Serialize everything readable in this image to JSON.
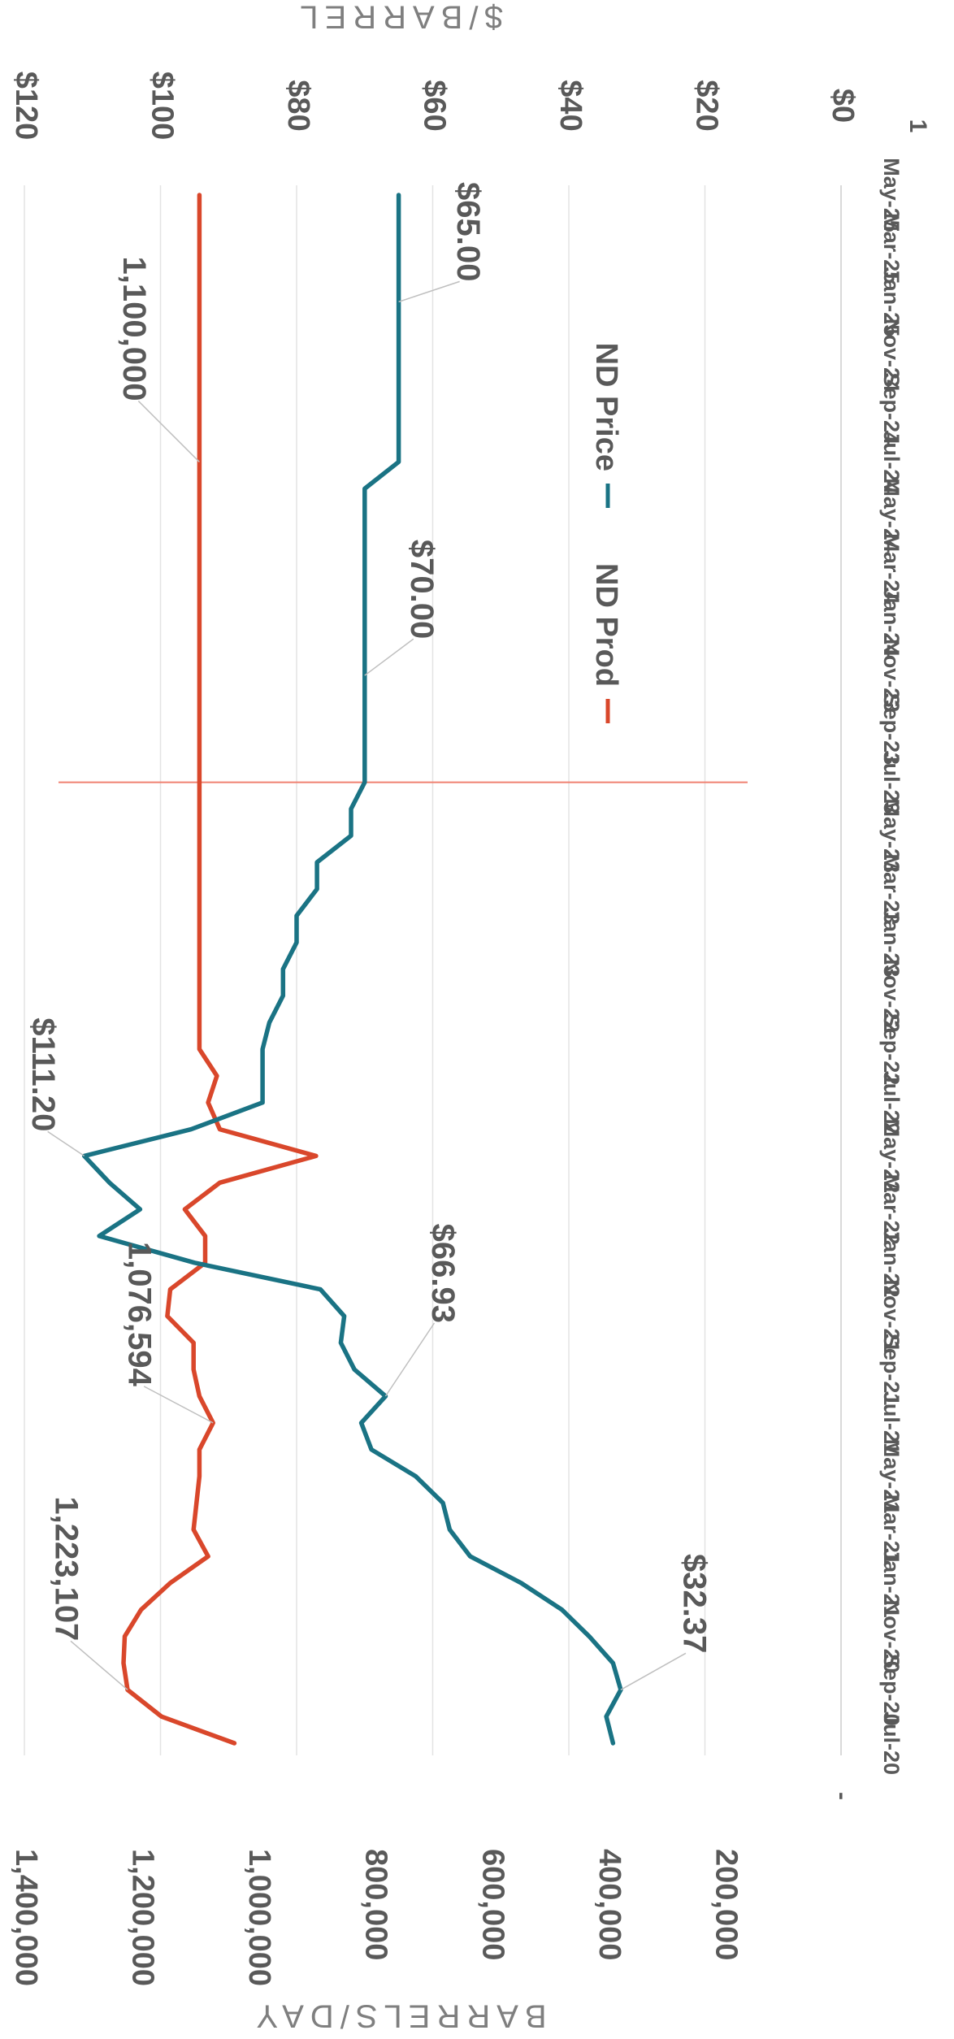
{
  "chart_data": {
    "type": "line",
    "orientation": "rotated-90-clockwise",
    "x": [
      "Jul-20",
      "Aug-20",
      "Sep-20",
      "Oct-20",
      "Nov-20",
      "Dec-20",
      "Jan-21",
      "Feb-21",
      "Mar-21",
      "Apr-21",
      "May-21",
      "Jun-21",
      "Jul-21",
      "Aug-21",
      "Sep-21",
      "Oct-21",
      "Nov-21",
      "Dec-21",
      "Jan-22",
      "Feb-22",
      "Mar-22",
      "Apr-22",
      "May-22",
      "Jun-22",
      "Jul-22",
      "Aug-22",
      "Sep-22",
      "Oct-22",
      "Nov-22",
      "Dec-22",
      "Jan-23",
      "Feb-23",
      "Mar-23",
      "Apr-23",
      "May-23",
      "Jun-23",
      "Jul-23",
      "Aug-23",
      "Sep-23",
      "Oct-23",
      "Nov-23",
      "Dec-23",
      "Jan-24",
      "Feb-24",
      "Mar-24",
      "Apr-24",
      "May-24",
      "Jun-24",
      "Jul-24",
      "Aug-24",
      "Sep-24",
      "Oct-24",
      "Nov-24",
      "Dec-24",
      "Jan-25",
      "Feb-25",
      "Mar-25",
      "Apr-25",
      "May-25"
    ],
    "x_tick_labels": [
      "Jul-20",
      "Sep-20",
      "Nov-20",
      "Jan-21",
      "Mar-21",
      "May-21",
      "Jul-21",
      "Sep-21",
      "Nov-21",
      "Jan-22",
      "Mar-22",
      "May-22",
      "Jul-22",
      "Sep-22",
      "Nov-22",
      "Jan-23",
      "Mar-23",
      "May-23",
      "Jul-23",
      "Sep-23",
      "Nov-23",
      "Jan-24",
      "Mar-24",
      "May-24",
      "Jul-24",
      "Sep-24",
      "Nov-24",
      "Jan-25",
      "Mar-25",
      "May-25"
    ],
    "series": [
      {
        "name": "ND Prod",
        "color": "#d9472b",
        "axis": "barrels",
        "values": [
          1040000,
          1165000,
          1223107,
          1230000,
          1228000,
          1200000,
          1150000,
          1085000,
          1110000,
          1105000,
          1100000,
          1100000,
          1076594,
          1100000,
          1110000,
          1110000,
          1155000,
          1150000,
          1090000,
          1090000,
          1125000,
          1065000,
          900000,
          1065000,
          1085000,
          1070000,
          1100000,
          1100000,
          1100000,
          1100000,
          1100000,
          1100000,
          1100000,
          1100000,
          1100000,
          1100000,
          1100000,
          1100000,
          1100000,
          1100000,
          1100000,
          1100000,
          1100000,
          1100000,
          1100000,
          1100000,
          1100000,
          1100000,
          1100000,
          1100000,
          1100000,
          1100000,
          1100000,
          1100000,
          1100000,
          1100000,
          1100000,
          1100000,
          1100000
        ]
      },
      {
        "name": "ND Price",
        "color": "#1a7384",
        "axis": "dollars",
        "values": [
          33.5,
          34.5,
          32.37,
          33.5,
          37.0,
          41.0,
          47.0,
          54.5,
          57.5,
          58.5,
          62.5,
          69.0,
          70.5,
          66.93,
          71.5,
          73.5,
          73.0,
          76.5,
          95.0,
          109.0,
          103.0,
          107.5,
          111.2,
          95.5,
          85.0,
          85.0,
          85.0,
          84.0,
          82.0,
          82.0,
          80.0,
          80.0,
          77.0,
          77.0,
          72.0,
          72.0,
          70.0,
          70.0,
          70.0,
          70.0,
          70.0,
          70.0,
          70.0,
          70.0,
          70.0,
          70.0,
          70.0,
          70.0,
          65.0,
          65.0,
          65.0,
          65.0,
          65.0,
          65.0,
          65.0,
          65.0,
          65.0,
          65.0,
          65.0
        ]
      }
    ],
    "data_labels": [
      {
        "series": "ND Prod",
        "x": "Sep-20",
        "text": "1,223,107"
      },
      {
        "series": "ND Prod",
        "x": "Jul-21",
        "text": "1,076,594"
      },
      {
        "series": "ND Prod",
        "x": "Jul-24",
        "text": "1,100,000"
      },
      {
        "series": "ND Price",
        "x": "Sep-20",
        "text": "$32.37"
      },
      {
        "series": "ND Price",
        "x": "Aug-21",
        "text": "$66.93"
      },
      {
        "series": "ND Price",
        "x": "May-22",
        "text": "$111.20"
      },
      {
        "series": "ND Price",
        "x": "Nov-23",
        "text": "$70.00"
      },
      {
        "series": "ND Price",
        "x": "Jan-25",
        "text": "$65.00"
      }
    ],
    "barrels_axis": {
      "title": "BARRELS/DAY",
      "range": [
        0,
        1400000
      ],
      "ticks": [
        {
          "value": 1400000,
          "label": "1,400,000"
        },
        {
          "value": 1200000,
          "label": "1,200,000"
        },
        {
          "value": 1000000,
          "label": "1,000,000"
        },
        {
          "value": 800000,
          "label": "800,000"
        },
        {
          "value": 600000,
          "label": "600,000"
        },
        {
          "value": 400000,
          "label": "400,000"
        },
        {
          "value": 200000,
          "label": "200,000"
        },
        {
          "value": 0,
          "label": "-"
        }
      ]
    },
    "dollar_axis": {
      "title": "$/BARREL",
      "range": [
        0,
        120
      ],
      "ticks": [
        {
          "value": 120,
          "label": "$120"
        },
        {
          "value": 100,
          "label": "$100"
        },
        {
          "value": 80,
          "label": "$80"
        },
        {
          "value": 60,
          "label": "$60"
        },
        {
          "value": 40,
          "label": "$40"
        },
        {
          "value": 20,
          "label": "$20"
        },
        {
          "value": 0,
          "label": "$0"
        }
      ]
    },
    "reference_line": {
      "x": "Jul-23",
      "color": "#f08070"
    },
    "legend": {
      "placement": "center",
      "entries": [
        "ND Prod",
        "ND Price"
      ]
    },
    "corner_mark": "1",
    "grid": true
  }
}
